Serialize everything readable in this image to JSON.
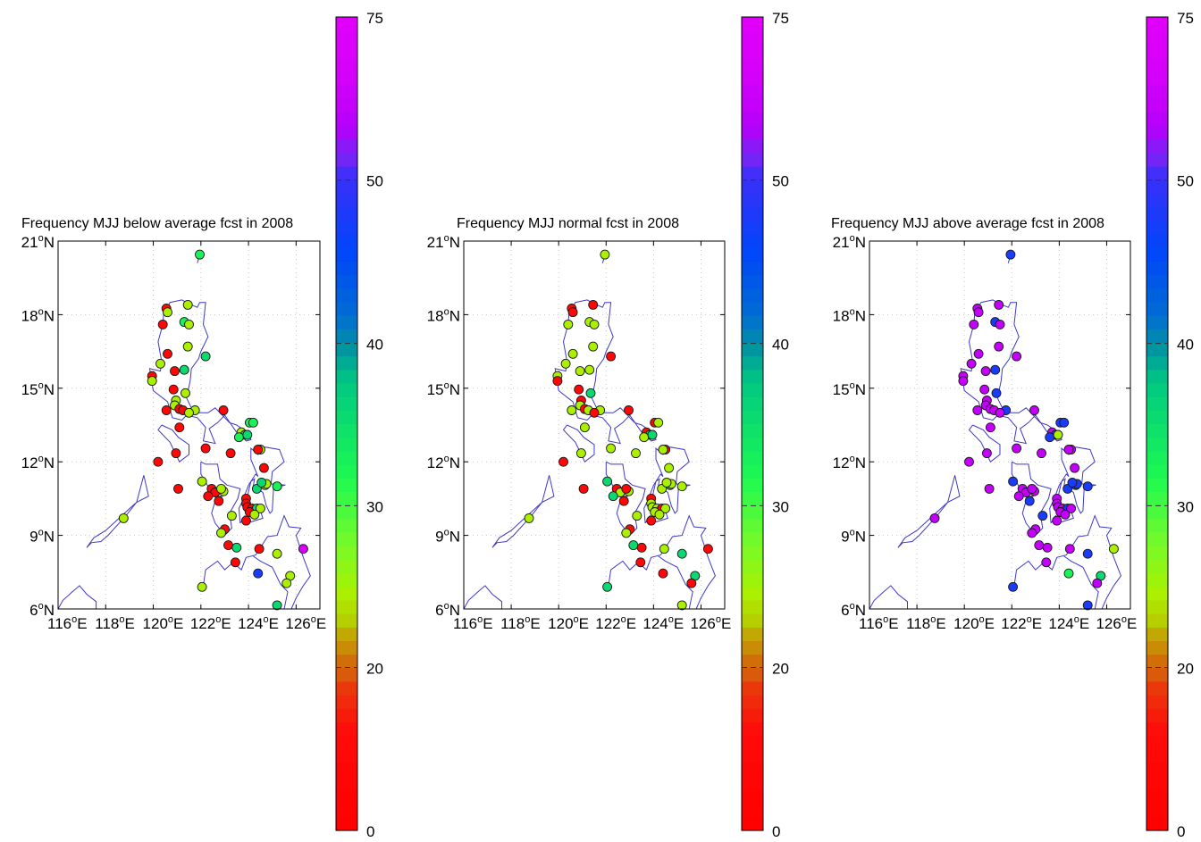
{
  "chart_data": [
    {
      "type": "scatter",
      "title": "Frequency MJJ below average fcst in 2008",
      "panel": "below",
      "xlabel": "",
      "ylabel": "",
      "xlim": [
        116,
        127
      ],
      "ylim": [
        6,
        21
      ],
      "xticks": [
        "116°E",
        "118°E",
        "120°E",
        "122°E",
        "124°E",
        "126°E"
      ],
      "yticks": [
        "6°N",
        "9°N",
        "12°N",
        "15°N",
        "18°N",
        "21°N"
      ],
      "grid": true,
      "colorbar": {
        "ticks": [
          0,
          20,
          30,
          40,
          50,
          75
        ]
      }
    },
    {
      "type": "scatter",
      "title": "Frequency MJJ normal fcst in 2008",
      "panel": "normal",
      "xlabel": "",
      "ylabel": "",
      "xlim": [
        116,
        127
      ],
      "ylim": [
        6,
        21
      ],
      "xticks": [
        "116°E",
        "118°E",
        "120°E",
        "122°E",
        "124°E",
        "126°E"
      ],
      "yticks": [
        "6°N",
        "9°N",
        "12°N",
        "15°N",
        "18°N",
        "21°N"
      ],
      "grid": true,
      "colorbar": {
        "ticks": [
          0,
          20,
          30,
          40,
          50,
          75
        ]
      }
    },
    {
      "type": "scatter",
      "title": "Frequency MJJ above average fcst in 2008",
      "panel": "above",
      "xlabel": "",
      "ylabel": "",
      "xlim": [
        116,
        127
      ],
      "ylim": [
        6,
        21
      ],
      "xticks": [
        "116°E",
        "118°E",
        "120°E",
        "122°E",
        "124°E",
        "126°E"
      ],
      "yticks": [
        "6°N",
        "9°N",
        "12°N",
        "15°N",
        "18°N",
        "21°N"
      ],
      "grid": true,
      "colorbar": {
        "ticks": [
          0,
          20,
          30,
          40,
          50,
          75
        ]
      }
    }
  ],
  "stations": [
    {
      "lon": 121.95,
      "lat": 20.45,
      "v": [
        33,
        25,
        48
      ]
    },
    {
      "lon": 120.55,
      "lat": 18.25,
      "v": [
        8,
        8,
        62
      ]
    },
    {
      "lon": 120.6,
      "lat": 18.1,
      "v": [
        25,
        8,
        62
      ]
    },
    {
      "lon": 121.45,
      "lat": 18.4,
      "v": [
        25,
        8,
        62
      ]
    },
    {
      "lon": 120.4,
      "lat": 17.6,
      "v": [
        8,
        25,
        62
      ]
    },
    {
      "lon": 121.3,
      "lat": 17.7,
      "v": [
        33,
        25,
        48
      ]
    },
    {
      "lon": 121.5,
      "lat": 17.6,
      "v": [
        25,
        25,
        62
      ]
    },
    {
      "lon": 121.45,
      "lat": 16.7,
      "v": [
        25,
        25,
        62
      ]
    },
    {
      "lon": 120.6,
      "lat": 16.4,
      "v": [
        8,
        25,
        62
      ]
    },
    {
      "lon": 122.2,
      "lat": 16.3,
      "v": [
        36,
        8,
        62
      ]
    },
    {
      "lon": 120.3,
      "lat": 16.0,
      "v": [
        25,
        25,
        62
      ]
    },
    {
      "lon": 121.3,
      "lat": 15.75,
      "v": [
        36,
        25,
        48
      ]
    },
    {
      "lon": 120.9,
      "lat": 15.7,
      "v": [
        8,
        25,
        62
      ]
    },
    {
      "lon": 119.95,
      "lat": 15.5,
      "v": [
        8,
        25,
        62
      ]
    },
    {
      "lon": 119.95,
      "lat": 15.3,
      "v": [
        25,
        8,
        62
      ]
    },
    {
      "lon": 121.35,
      "lat": 14.8,
      "v": [
        25,
        36,
        48
      ]
    },
    {
      "lon": 120.85,
      "lat": 14.95,
      "v": [
        8,
        8,
        62
      ]
    },
    {
      "lon": 120.95,
      "lat": 14.5,
      "v": [
        25,
        8,
        62
      ]
    },
    {
      "lon": 120.9,
      "lat": 14.3,
      "v": [
        25,
        25,
        62
      ]
    },
    {
      "lon": 120.55,
      "lat": 14.1,
      "v": [
        8,
        25,
        62
      ]
    },
    {
      "lon": 121.1,
      "lat": 14.15,
      "v": [
        8,
        8,
        62
      ]
    },
    {
      "lon": 121.25,
      "lat": 14.1,
      "v": [
        8,
        25,
        62
      ]
    },
    {
      "lon": 121.75,
      "lat": 14.1,
      "v": [
        25,
        25,
        48
      ]
    },
    {
      "lon": 121.5,
      "lat": 14.0,
      "v": [
        25,
        8,
        62
      ]
    },
    {
      "lon": 122.95,
      "lat": 14.1,
      "v": [
        8,
        8,
        62
      ]
    },
    {
      "lon": 121.1,
      "lat": 13.4,
      "v": [
        8,
        25,
        62
      ]
    },
    {
      "lon": 124.05,
      "lat": 13.6,
      "v": [
        33,
        8,
        48
      ]
    },
    {
      "lon": 124.2,
      "lat": 13.6,
      "v": [
        33,
        25,
        48
      ]
    },
    {
      "lon": 123.7,
      "lat": 13.2,
      "v": [
        25,
        8,
        62
      ]
    },
    {
      "lon": 123.85,
      "lat": 13.1,
      "v": [
        36,
        36,
        48
      ]
    },
    {
      "lon": 123.6,
      "lat": 13.0,
      "v": [
        33,
        25,
        48
      ]
    },
    {
      "lon": 123.95,
      "lat": 13.1,
      "v": [
        36,
        36,
        25
      ]
    },
    {
      "lon": 120.95,
      "lat": 12.35,
      "v": [
        8,
        25,
        62
      ]
    },
    {
      "lon": 122.2,
      "lat": 12.55,
      "v": [
        8,
        25,
        62
      ]
    },
    {
      "lon": 123.25,
      "lat": 12.35,
      "v": [
        8,
        25,
        62
      ]
    },
    {
      "lon": 124.5,
      "lat": 12.5,
      "v": [
        25,
        8,
        62
      ]
    },
    {
      "lon": 124.4,
      "lat": 12.5,
      "v": [
        8,
        25,
        62
      ]
    },
    {
      "lon": 120.2,
      "lat": 12.0,
      "v": [
        8,
        8,
        62
      ]
    },
    {
      "lon": 124.65,
      "lat": 11.75,
      "v": [
        8,
        25,
        62
      ]
    },
    {
      "lon": 121.05,
      "lat": 10.9,
      "v": [
        8,
        8,
        62
      ]
    },
    {
      "lon": 122.05,
      "lat": 11.2,
      "v": [
        25,
        36,
        48
      ]
    },
    {
      "lon": 122.45,
      "lat": 10.9,
      "v": [
        8,
        8,
        62
      ]
    },
    {
      "lon": 122.6,
      "lat": 10.75,
      "v": [
        8,
        25,
        62
      ]
    },
    {
      "lon": 122.3,
      "lat": 10.6,
      "v": [
        8,
        36,
        62
      ]
    },
    {
      "lon": 122.75,
      "lat": 10.4,
      "v": [
        8,
        8,
        48
      ]
    },
    {
      "lon": 122.95,
      "lat": 10.8,
      "v": [
        25,
        25,
        62
      ]
    },
    {
      "lon": 122.85,
      "lat": 10.9,
      "v": [
        25,
        8,
        62
      ]
    },
    {
      "lon": 124.35,
      "lat": 10.9,
      "v": [
        36,
        25,
        48
      ]
    },
    {
      "lon": 124.7,
      "lat": 11.05,
      "v": [
        25,
        36,
        48
      ]
    },
    {
      "lon": 124.75,
      "lat": 11.1,
      "v": [
        25,
        25,
        48
      ]
    },
    {
      "lon": 124.55,
      "lat": 11.15,
      "v": [
        36,
        25,
        48
      ]
    },
    {
      "lon": 125.2,
      "lat": 11.0,
      "v": [
        33,
        25,
        48
      ]
    },
    {
      "lon": 123.9,
      "lat": 10.5,
      "v": [
        8,
        8,
        62
      ]
    },
    {
      "lon": 123.9,
      "lat": 10.3,
      "v": [
        8,
        25,
        62
      ]
    },
    {
      "lon": 123.95,
      "lat": 10.15,
      "v": [
        8,
        25,
        62
      ]
    },
    {
      "lon": 124.15,
      "lat": 10.1,
      "v": [
        8,
        25,
        62
      ]
    },
    {
      "lon": 124.35,
      "lat": 10.1,
      "v": [
        36,
        8,
        48
      ]
    },
    {
      "lon": 124.5,
      "lat": 10.1,
      "v": [
        25,
        25,
        62
      ]
    },
    {
      "lon": 124.05,
      "lat": 9.95,
      "v": [
        8,
        25,
        62
      ]
    },
    {
      "lon": 124.25,
      "lat": 9.85,
      "v": [
        25,
        25,
        62
      ]
    },
    {
      "lon": 123.9,
      "lat": 9.6,
      "v": [
        8,
        8,
        62
      ]
    },
    {
      "lon": 123.3,
      "lat": 9.8,
      "v": [
        25,
        25,
        48
      ]
    },
    {
      "lon": 123.0,
      "lat": 9.25,
      "v": [
        8,
        8,
        62
      ]
    },
    {
      "lon": 122.85,
      "lat": 9.1,
      "v": [
        25,
        25,
        62
      ]
    },
    {
      "lon": 118.75,
      "lat": 9.7,
      "v": [
        25,
        25,
        62
      ]
    },
    {
      "lon": 123.15,
      "lat": 8.6,
      "v": [
        8,
        36,
        62
      ]
    },
    {
      "lon": 123.5,
      "lat": 8.5,
      "v": [
        36,
        8,
        62
      ]
    },
    {
      "lon": 124.45,
      "lat": 8.45,
      "v": [
        8,
        25,
        62
      ]
    },
    {
      "lon": 125.2,
      "lat": 8.25,
      "v": [
        25,
        36,
        48
      ]
    },
    {
      "lon": 126.3,
      "lat": 8.45,
      "v": [
        70,
        8,
        25
      ]
    },
    {
      "lon": 123.45,
      "lat": 7.9,
      "v": [
        8,
        8,
        62
      ]
    },
    {
      "lon": 124.4,
      "lat": 7.45,
      "v": [
        48,
        8,
        33
      ]
    },
    {
      "lon": 125.75,
      "lat": 7.35,
      "v": [
        25,
        36,
        36
      ]
    },
    {
      "lon": 125.6,
      "lat": 7.05,
      "v": [
        25,
        8,
        62
      ]
    },
    {
      "lon": 122.05,
      "lat": 6.9,
      "v": [
        25,
        36,
        48
      ]
    },
    {
      "lon": 125.2,
      "lat": 6.15,
      "v": [
        36,
        25,
        48
      ]
    }
  ],
  "coastline": [
    [
      [
        121.85,
        20.1
      ],
      [
        122.0,
        20.6
      ]
    ],
    [
      [
        120.6,
        18.3
      ],
      [
        120.7,
        18.5
      ],
      [
        121.2,
        18.6
      ],
      [
        121.6,
        18.4
      ],
      [
        121.85,
        18.3
      ],
      [
        121.95,
        18.5
      ],
      [
        122.2,
        18.5
      ],
      [
        122.1,
        17.6
      ],
      [
        122.3,
        17.1
      ],
      [
        122.0,
        16.5
      ],
      [
        121.9,
        16.2
      ],
      [
        121.6,
        15.8
      ],
      [
        121.55,
        15.3
      ],
      [
        121.4,
        14.6
      ],
      [
        121.7,
        14.0
      ],
      [
        121.9,
        14.0
      ],
      [
        122.3,
        14.0
      ],
      [
        122.6,
        14.2
      ],
      [
        122.9,
        13.9
      ],
      [
        123.2,
        13.6
      ],
      [
        123.5,
        13.5
      ],
      [
        123.8,
        13.3
      ],
      [
        123.7,
        13.1
      ],
      [
        123.9,
        12.85
      ],
      [
        124.1,
        12.9
      ],
      [
        124.05,
        13.1
      ],
      [
        123.5,
        13.2
      ],
      [
        123.0,
        13.9
      ],
      [
        122.7,
        13.6
      ],
      [
        122.35,
        13.35
      ],
      [
        122.6,
        12.75
      ],
      [
        122.1,
        12.85
      ],
      [
        122.2,
        13.4
      ],
      [
        121.85,
        13.8
      ],
      [
        121.4,
        13.9
      ],
      [
        121.2,
        13.7
      ],
      [
        120.8,
        13.8
      ],
      [
        120.6,
        14.45
      ],
      [
        120.4,
        14.6
      ],
      [
        120.0,
        14.9
      ],
      [
        119.85,
        15.8
      ],
      [
        120.3,
        15.7
      ],
      [
        120.35,
        16.1
      ],
      [
        120.2,
        16.9
      ],
      [
        120.4,
        17.6
      ],
      [
        120.45,
        18.2
      ],
      [
        120.6,
        18.3
      ]
    ],
    [
      [
        120.35,
        13.5
      ],
      [
        120.8,
        13.3
      ],
      [
        121.05,
        13.0
      ],
      [
        121.5,
        12.7
      ],
      [
        121.5,
        12.3
      ],
      [
        121.1,
        12.0
      ],
      [
        120.7,
        12.8
      ],
      [
        120.2,
        13.3
      ],
      [
        120.35,
        13.5
      ]
    ],
    [
      [
        122.0,
        12.0
      ],
      [
        122.0,
        11.5
      ],
      [
        122.3,
        11.0
      ],
      [
        122.45,
        10.6
      ],
      [
        122.9,
        10.6
      ],
      [
        122.6,
        10.4
      ],
      [
        122.45,
        9.9
      ],
      [
        122.6,
        9.5
      ],
      [
        123.0,
        9.0
      ],
      [
        123.3,
        9.3
      ],
      [
        123.2,
        9.9
      ],
      [
        123.55,
        10.5
      ],
      [
        123.65,
        10.9
      ],
      [
        123.1,
        11.05
      ],
      [
        122.8,
        11.3
      ],
      [
        122.7,
        11.9
      ],
      [
        122.2,
        11.9
      ],
      [
        122.0,
        12.0
      ]
    ],
    [
      [
        123.65,
        9.5
      ],
      [
        123.85,
        9.8
      ],
      [
        124.1,
        9.55
      ],
      [
        124.6,
        9.7
      ],
      [
        124.5,
        10.0
      ],
      [
        124.1,
        10.15
      ],
      [
        123.95,
        10.5
      ],
      [
        124.0,
        10.8
      ],
      [
        124.1,
        11.2
      ],
      [
        124.25,
        11.3
      ],
      [
        124.2,
        11.0
      ],
      [
        124.6,
        10.75
      ],
      [
        124.75,
        10.2
      ],
      [
        124.9,
        9.9
      ],
      [
        125.0,
        10.0
      ],
      [
        125.05,
        10.9
      ],
      [
        125.3,
        11.0
      ],
      [
        125.55,
        11.05
      ],
      [
        124.95,
        11.1
      ],
      [
        125.0,
        11.6
      ],
      [
        125.5,
        12.0
      ],
      [
        125.3,
        12.5
      ],
      [
        124.7,
        12.6
      ],
      [
        124.4,
        12.3
      ],
      [
        124.1,
        12.55
      ],
      [
        124.1,
        12.1
      ],
      [
        124.4,
        11.4
      ],
      [
        124.3,
        11.5
      ],
      [
        124.0,
        11.05
      ],
      [
        123.75,
        10.4
      ],
      [
        123.6,
        10.1
      ],
      [
        123.65,
        9.5
      ]
    ],
    [
      [
        122.1,
        6.95
      ],
      [
        122.2,
        7.6
      ],
      [
        122.7,
        7.95
      ],
      [
        123.0,
        7.6
      ],
      [
        123.35,
        7.9
      ],
      [
        123.7,
        7.6
      ],
      [
        123.9,
        8.1
      ],
      [
        124.3,
        8.2
      ],
      [
        124.8,
        8.95
      ],
      [
        125.2,
        9.0
      ],
      [
        125.5,
        9.8
      ],
      [
        125.7,
        9.35
      ],
      [
        126.2,
        9.3
      ],
      [
        126.0,
        9.0
      ],
      [
        126.3,
        8.1
      ],
      [
        126.6,
        7.35
      ],
      [
        126.3,
        6.95
      ],
      [
        126.0,
        6.45
      ],
      [
        125.8,
        6.0
      ]
    ],
    [
      [
        125.5,
        6.0
      ],
      [
        125.65,
        6.7
      ],
      [
        125.35,
        7.0
      ],
      [
        125.0,
        7.7
      ],
      [
        124.5,
        7.95
      ],
      [
        124.2,
        8.15
      ]
    ],
    [
      [
        117.2,
        8.5
      ],
      [
        117.5,
        8.9
      ],
      [
        118.0,
        9.2
      ],
      [
        118.45,
        9.6
      ],
      [
        118.9,
        10.0
      ],
      [
        119.3,
        10.35
      ],
      [
        119.6,
        11.45
      ],
      [
        119.8,
        10.6
      ],
      [
        119.3,
        10.35
      ],
      [
        118.85,
        9.8
      ],
      [
        118.1,
        9.0
      ],
      [
        117.8,
        8.75
      ],
      [
        117.4,
        8.7
      ],
      [
        117.2,
        8.5
      ]
    ],
    [
      [
        116.0,
        6.0
      ],
      [
        116.2,
        6.35
      ],
      [
        116.6,
        6.7
      ],
      [
        116.9,
        6.95
      ],
      [
        117.2,
        6.6
      ],
      [
        117.6,
        6.3
      ],
      [
        117.6,
        6.0
      ]
    ]
  ],
  "colors": {
    "coast": "#3f38c8",
    "grid": "#c8c8c8"
  }
}
